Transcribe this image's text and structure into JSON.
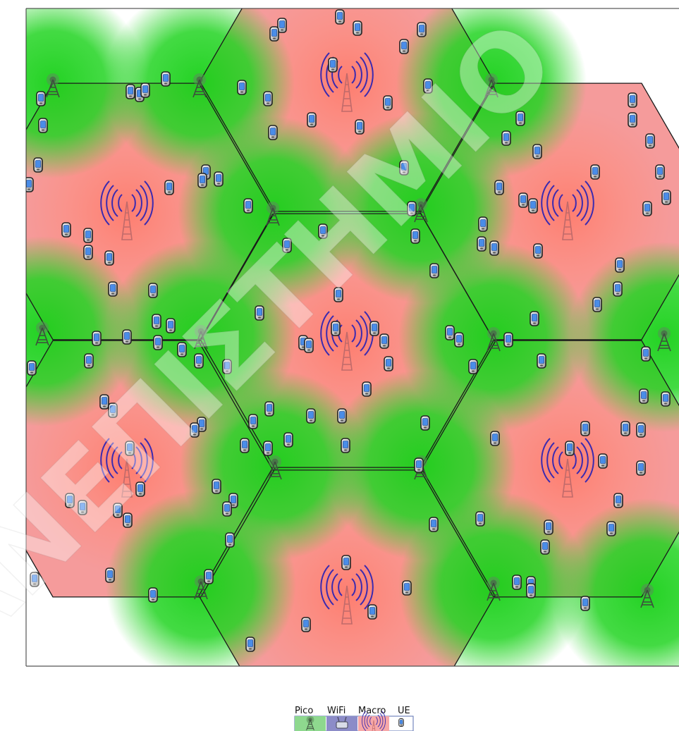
{
  "diagram": {
    "colors": {
      "macro_coverage": "#f59b9b",
      "macro_center": "#ff8a70",
      "pico_coverage": "#1fd41f",
      "wifi_coverage": "#8c8cc8",
      "cell_border": "#1a1a1a",
      "antenna_waves": "#3b2ab0",
      "ue_screen": "#4a8de8"
    },
    "node_types": [
      "macro",
      "pico",
      "ue"
    ],
    "watermark": "ΠΑΝΕΠΙΣΤΗΜΙΟ"
  },
  "legend": {
    "pico_label": "Pico",
    "wifi_label": "WiFi",
    "macro_label": "Macro",
    "ue_label": "UE",
    "pico_icon": "pico-tower-icon",
    "wifi_icon": "wifi-router-icon",
    "macro_icon": "macro-antenna-icon",
    "ue_icon": "phone-icon"
  }
}
